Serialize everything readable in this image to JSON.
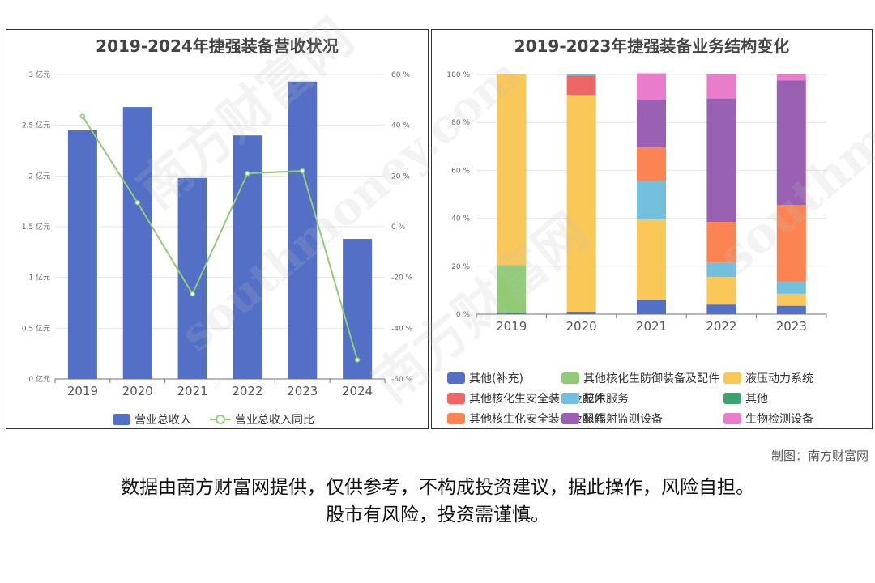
{
  "left_chart": {
    "title": "2019-2024年捷强装备营收状况"
  },
  "right_chart": {
    "title": "2019-2023年捷强装备业务结构变化"
  },
  "credit": "制图：南方财富网",
  "disclaimer_line1": "数据由南方财富网提供，仅供参考，不构成投资建议，据此操作，风险自担。",
  "disclaimer_line2": "股市有风险，投资需谨慎。",
  "watermark_text": "南方财富网",
  "watermark_url": "southmoney.com",
  "chart_data": [
    {
      "type": "bar",
      "title": "2019-2024年捷强装备营收状况",
      "categories": [
        "2019",
        "2020",
        "2021",
        "2022",
        "2023",
        "2024"
      ],
      "series": [
        {
          "name": "营业总收入",
          "type": "bar",
          "axis": "left",
          "color": "#5470c6",
          "values": [
            2.45,
            2.68,
            1.98,
            2.4,
            2.93,
            1.38
          ]
        },
        {
          "name": "营业总收入同比",
          "type": "line",
          "axis": "right",
          "color": "#91cc75",
          "values": [
            43.5,
            9.5,
            -26.5,
            21.0,
            22.0,
            -52.5
          ]
        }
      ],
      "left_axis": {
        "ticks": [
          "0 亿元",
          "0.5 亿元",
          "1 亿元",
          "1.5 亿元",
          "2 亿元",
          "2.5 亿元",
          "3 亿元"
        ],
        "ylim": [
          0,
          3
        ]
      },
      "right_axis": {
        "ticks": [
          "-60 %",
          "-40 %",
          "-20 %",
          "0 %",
          "20 %",
          "40 %",
          "60 %"
        ],
        "ylim": [
          -60,
          60
        ]
      },
      "legend_position": "bottom",
      "grid": true
    },
    {
      "type": "bar",
      "stacked": true,
      "title": "2019-2023年捷强装备业务结构变化",
      "categories": [
        "2019",
        "2020",
        "2021",
        "2022",
        "2023"
      ],
      "y_ticks": [
        "0 %",
        "20 %",
        "40 %",
        "60 %",
        "80 %",
        "100 %"
      ],
      "ylim": [
        0,
        100
      ],
      "series": [
        {
          "name": "其他(补充)",
          "color": "#5470c6",
          "values": [
            0.5,
            1.0,
            6.0,
            4.0,
            3.5
          ]
        },
        {
          "name": "其他核化生防御装备及配件",
          "color": "#91cc75",
          "values": [
            20.0,
            0,
            0,
            0,
            0
          ]
        },
        {
          "name": "液压动力系统",
          "color": "#fac858",
          "values": [
            79.5,
            90.5,
            33.5,
            11.5,
            5.0
          ]
        },
        {
          "name": "其他核化生安全装备及配件",
          "color": "#ee6666",
          "values": [
            0,
            8.0,
            0,
            0,
            0
          ]
        },
        {
          "name": "技术服务",
          "color": "#73c0de",
          "values": [
            0,
            0.5,
            16.0,
            6.0,
            5.0
          ]
        },
        {
          "name": "其他",
          "color": "#3ba272",
          "values": [
            0,
            0,
            0,
            0,
            0
          ]
        },
        {
          "name": "其他核生化安全装备及配件",
          "color": "#fc8452",
          "values": [
            0,
            0,
            14.0,
            17.0,
            32.0
          ]
        },
        {
          "name": "核辐射监测设备",
          "color": "#9a60b4",
          "values": [
            0,
            0,
            20.0,
            51.5,
            52.0
          ]
        },
        {
          "name": "生物检测设备",
          "color": "#ea7ccc",
          "values": [
            0,
            0,
            11.0,
            10.0,
            2.5
          ]
        }
      ],
      "legend_position": "bottom",
      "grid": true
    }
  ]
}
